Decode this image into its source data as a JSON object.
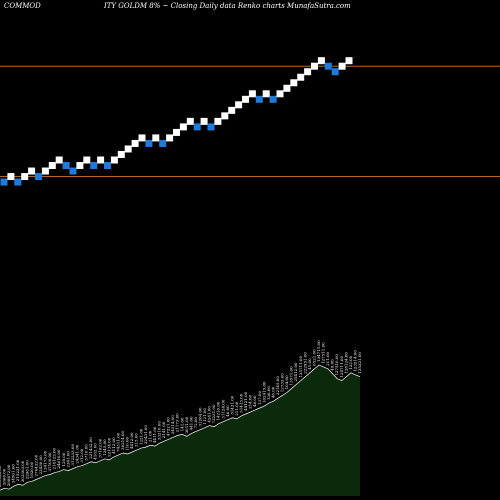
{
  "header": {
    "left": "COMMOD",
    "center": "ITY GOLDM 8% ~  Closing Daily data  Renko  charts MunafaSutra.com"
  },
  "colors": {
    "background": "#000000",
    "up_brick": "#ffffff",
    "down_brick": "#1e7bdc",
    "reference_line": "#b5651d",
    "volume_fill": "#0b2a0b",
    "volume_edge": "#ffffff"
  },
  "chart_data": [
    {
      "type": "renko",
      "brick_size": 1,
      "reference_lines": [
        31,
        41
      ],
      "ylim": [
        18,
        47
      ],
      "bricks": [
        {
          "dir": "down",
          "level": 30.5
        },
        {
          "dir": "up",
          "level": 31
        },
        {
          "dir": "down",
          "level": 30.5
        },
        {
          "dir": "up",
          "level": 31
        },
        {
          "dir": "up",
          "level": 31.5
        },
        {
          "dir": "down",
          "level": 31
        },
        {
          "dir": "up",
          "level": 31.5
        },
        {
          "dir": "up",
          "level": 32
        },
        {
          "dir": "up",
          "level": 32.5
        },
        {
          "dir": "down",
          "level": 32
        },
        {
          "dir": "down",
          "level": 31.5
        },
        {
          "dir": "up",
          "level": 32
        },
        {
          "dir": "up",
          "level": 32.5
        },
        {
          "dir": "down",
          "level": 32
        },
        {
          "dir": "up",
          "level": 32.5
        },
        {
          "dir": "down",
          "level": 32
        },
        {
          "dir": "up",
          "level": 32.5
        },
        {
          "dir": "up",
          "level": 33
        },
        {
          "dir": "up",
          "level": 33.5
        },
        {
          "dir": "up",
          "level": 34
        },
        {
          "dir": "up",
          "level": 34.5
        },
        {
          "dir": "down",
          "level": 34
        },
        {
          "dir": "up",
          "level": 34.5
        },
        {
          "dir": "down",
          "level": 34
        },
        {
          "dir": "up",
          "level": 34.5
        },
        {
          "dir": "up",
          "level": 35
        },
        {
          "dir": "up",
          "level": 35.5
        },
        {
          "dir": "up",
          "level": 36
        },
        {
          "dir": "down",
          "level": 35.5
        },
        {
          "dir": "up",
          "level": 36
        },
        {
          "dir": "down",
          "level": 35.5
        },
        {
          "dir": "up",
          "level": 36
        },
        {
          "dir": "up",
          "level": 36.5
        },
        {
          "dir": "up",
          "level": 37
        },
        {
          "dir": "up",
          "level": 37.5
        },
        {
          "dir": "up",
          "level": 38
        },
        {
          "dir": "up",
          "level": 38.5
        },
        {
          "dir": "down",
          "level": 38
        },
        {
          "dir": "up",
          "level": 38.5
        },
        {
          "dir": "down",
          "level": 38
        },
        {
          "dir": "up",
          "level": 38.5
        },
        {
          "dir": "up",
          "level": 39
        },
        {
          "dir": "up",
          "level": 39.5
        },
        {
          "dir": "up",
          "level": 40
        },
        {
          "dir": "up",
          "level": 40.5
        },
        {
          "dir": "up",
          "level": 41
        },
        {
          "dir": "up",
          "level": 41.5
        },
        {
          "dir": "down",
          "level": 41
        },
        {
          "dir": "down",
          "level": 40.5
        },
        {
          "dir": "up",
          "level": 41
        },
        {
          "dir": "up",
          "level": 41.5
        }
      ]
    },
    {
      "type": "area",
      "name": "volume",
      "ylim": [
        0,
        180
      ],
      "values": [
        6,
        8,
        7,
        10,
        12,
        11,
        14,
        15,
        17,
        19,
        21,
        22,
        24,
        25,
        27,
        26,
        28,
        30,
        31,
        33,
        35,
        34,
        36,
        38,
        37,
        40,
        42,
        44,
        43,
        45,
        47,
        49,
        50,
        52,
        51,
        54,
        56,
        58,
        60,
        62,
        63,
        61,
        64,
        66,
        68,
        70,
        72,
        71,
        74,
        76,
        78,
        80,
        79,
        82,
        84,
        86,
        88,
        90,
        92,
        95,
        97,
        100,
        103,
        106,
        110,
        114,
        118,
        122,
        126,
        130,
        134,
        132,
        130,
        125,
        120,
        118,
        122,
        126,
        124,
        122
      ],
      "labels": [
        "305923.00",
        "2060.00",
        "208672.00",
        "34501.00",
        "215231.00",
        "303303.00",
        "22961.00",
        "1920.00",
        "276432.00",
        "22430.00",
        "124173.00",
        "37100.00",
        "214122.00",
        "24610.00",
        "129.00",
        "2341.00",
        "312233.00",
        "24341.00",
        "312.00",
        "3710.00",
        "221432.00",
        "4102.00",
        "37162.00",
        "1245.00",
        "22134.00",
        "4112.00",
        "74311.00",
        "36214.00",
        "110.00",
        "4412.00",
        "215.00",
        "1221.00",
        "32431.00",
        "21.00",
        "4411.00",
        "33210.00",
        "2141.00",
        "47221.00",
        "34514.00",
        "21173.00",
        "141.00",
        "3611.00",
        "441.00",
        "72.00",
        "31264.00",
        "1121.00",
        "4241.00",
        "72231.00",
        "14216.00",
        "31124.00",
        "46.00",
        "31421.00",
        "211.00",
        "31413.00",
        "44121.00",
        "214.00",
        "46.00",
        "137.00",
        "102415.00",
        "136.00",
        "46.00",
        "32145.00",
        "12733.00",
        "104.00",
        "13571.00",
        "25412.00",
        "135711.00",
        "222951.00",
        "41.00",
        "6521.00",
        "134711.00",
        "127511.00",
        "211.00",
        "49.00",
        "127510.00",
        "124711.00",
        "128124.00",
        "123.00",
        "123214.00",
        "135321.00"
      ]
    }
  ]
}
